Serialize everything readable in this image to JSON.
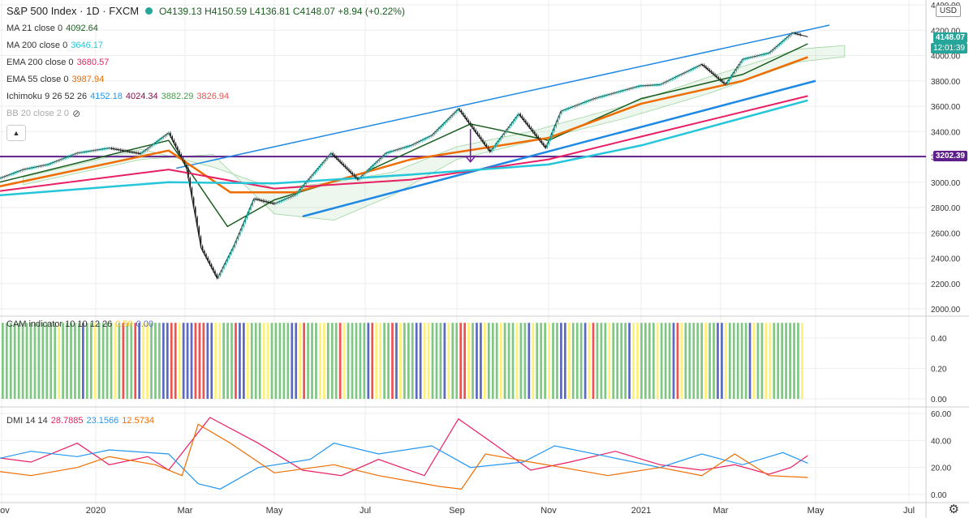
{
  "header": {
    "symbol": "S&P 500 Index · 1D · FXCM",
    "ohlc": "O4139.13  H4150.59  L4136.81  C4148.07  +8.94 (+0.22%)"
  },
  "currency": "USD",
  "price_labels": {
    "last": "4148.07",
    "countdown": "12:01:39",
    "level": "3202.39"
  },
  "indicators": {
    "ma21": {
      "label": "MA 21 close 0",
      "value": "4092.64",
      "color": "#1b5e20"
    },
    "ma200": {
      "label": "MA 200 close 0",
      "value": "3646.17",
      "color": "#26c6da"
    },
    "ema200": {
      "label": "EMA 200 close 0",
      "value": "3680.57",
      "color": "#e91e63"
    },
    "ema55": {
      "label": "EMA 55 close 0",
      "value": "3987.94",
      "color": "#ef6c00"
    },
    "ichimoku": {
      "label": "Ichimoku 9 26 52 26",
      "values": [
        "4152.18",
        "4024.34",
        "3882.29",
        "3826.94"
      ],
      "colors": [
        "#2196f3",
        "#880e4f",
        "#43a047",
        "#ef5350"
      ]
    },
    "bb": {
      "label": "BB 20 close 2 0"
    }
  },
  "cam": {
    "label": "CAM indicator 10 10 12 26",
    "values": [
      "0.50",
      "0.00"
    ]
  },
  "dmi": {
    "label": "DMI 14 14",
    "values": [
      "28.7885",
      "23.1566",
      "12.5734"
    ],
    "colors": [
      "#e91e63",
      "#2196f3",
      "#ef6c00"
    ]
  },
  "colors": {
    "up": "#26a69a",
    "down": "#1a1a1a",
    "level": "#5e1f8a",
    "trend": "#1e88e5",
    "cam_green": "#81c784",
    "cam_yellow": "#fff176",
    "cam_blue": "#5c6bc0",
    "cam_red": "#ef5350"
  },
  "chart_data": [
    {
      "type": "line",
      "title": "S&P 500 Index · 1D · FXCM",
      "x_ticks": [
        "Nov",
        "2020",
        "Mar",
        "May",
        "Jul",
        "Sep",
        "Nov",
        "2021",
        "Mar",
        "May",
        "Jul"
      ],
      "y_ticks": [
        2000,
        2200,
        2400,
        2600,
        2800,
        3000,
        3200,
        3400,
        3600,
        3800,
        4000,
        4200,
        4400
      ],
      "ylim": [
        1975,
        4410
      ],
      "series": [
        {
          "name": "S&P 500 Index",
          "x": [
            "2019-10-24",
            "2019-11-15",
            "2019-12-01",
            "2019-12-20",
            "2020-01-10",
            "2020-01-31",
            "2020-02-19",
            "2020-03-02",
            "2020-03-12",
            "2020-03-23",
            "2020-04-03",
            "2020-04-17",
            "2020-05-01",
            "2020-05-15",
            "2020-06-08",
            "2020-06-26",
            "2020-07-15",
            "2020-08-01",
            "2020-08-15",
            "2020-09-02",
            "2020-09-23",
            "2020-10-12",
            "2020-10-30",
            "2020-11-09",
            "2020-12-01",
            "2020-12-31",
            "2021-01-15",
            "2021-02-15",
            "2021-03-04",
            "2021-03-15",
            "2021-04-01",
            "2021-04-16",
            "2021-04-26"
          ],
          "values": [
            3000,
            3100,
            3140,
            3230,
            3270,
            3225,
            3390,
            3110,
            2480,
            2240,
            2490,
            2870,
            2830,
            2900,
            3230,
            3020,
            3230,
            3290,
            3370,
            3580,
            3240,
            3540,
            3270,
            3560,
            3660,
            3760,
            3770,
            3930,
            3770,
            3970,
            4020,
            4180,
            4148
          ]
        },
        {
          "name": "MA 21 close 0",
          "x": [
            "2019-10-24",
            "2020-02-19",
            "2020-03-30",
            "2020-05-01",
            "2020-07-01",
            "2020-09-10",
            "2020-11-01",
            "2021-01-01",
            "2021-03-15",
            "2021-04-26"
          ],
          "values": [
            2980,
            3330,
            2650,
            2860,
            3080,
            3460,
            3330,
            3660,
            3850,
            4092.64
          ]
        },
        {
          "name": "EMA 55 close 0",
          "x": [
            "2019-10-24",
            "2020-02-19",
            "2020-04-01",
            "2020-05-15",
            "2020-08-01",
            "2020-11-01",
            "2021-01-01",
            "2021-03-15",
            "2021-04-26"
          ],
          "values": [
            2950,
            3250,
            2920,
            2920,
            3180,
            3350,
            3620,
            3800,
            3987.94
          ]
        },
        {
          "name": "EMA 200 close 0",
          "x": [
            "2019-10-24",
            "2020-02-19",
            "2020-05-01",
            "2020-08-01",
            "2020-11-01",
            "2021-01-01",
            "2021-04-26"
          ],
          "values": [
            2920,
            3100,
            2950,
            3020,
            3180,
            3360,
            3680.57
          ]
        },
        {
          "name": "MA 200 close 0",
          "x": [
            "2019-10-24",
            "2020-02-19",
            "2020-05-01",
            "2020-08-01",
            "2020-11-01",
            "2021-01-01",
            "2021-04-26"
          ],
          "values": [
            2890,
            3000,
            2990,
            3060,
            3140,
            3290,
            3646.17
          ]
        }
      ],
      "horizontal_line": 3202.39
    },
    {
      "type": "bar",
      "title": "CAM indicator 10 10 12 26",
      "y_ticks": [
        0.0,
        0.2,
        0.4
      ],
      "ylim": [
        -0.02,
        0.53
      ],
      "bar_value": 0.5,
      "color_sequence": [
        "green",
        "green",
        "green",
        "green",
        "green",
        "green",
        "green",
        "green",
        "green",
        "green",
        "green",
        "green",
        "green",
        "green",
        "yellow",
        "green",
        "green",
        "green",
        "green",
        "green",
        "blue",
        "green",
        "green",
        "yellow",
        "green",
        "green",
        "green",
        "green",
        "yellow",
        "green",
        "red",
        "green",
        "green",
        "red",
        "blue",
        "yellow",
        "yellow",
        "green",
        "green",
        "green",
        "blue",
        "blue",
        "red",
        "red",
        "yellow",
        "blue",
        "blue",
        "blue",
        "red",
        "red",
        "red",
        "blue",
        "blue",
        "yellow",
        "yellow",
        "green",
        "green",
        "green",
        "red",
        "blue",
        "blue",
        "yellow",
        "green",
        "green",
        "green",
        "yellow",
        "yellow",
        "green",
        "green",
        "green",
        "green",
        "green",
        "blue",
        "blue",
        "yellow",
        "red",
        "green",
        "green",
        "green",
        "yellow",
        "yellow",
        "green",
        "green",
        "green",
        "red",
        "yellow",
        "green",
        "green",
        "green",
        "green",
        "green",
        "blue",
        "red",
        "yellow",
        "yellow",
        "green",
        "green",
        "red",
        "blue",
        "yellow",
        "green",
        "green",
        "green",
        "blue",
        "blue",
        "yellow",
        "yellow",
        "green",
        "green",
        "green",
        "blue",
        "yellow",
        "green",
        "green",
        "red",
        "red",
        "yellow",
        "green",
        "blue",
        "blue",
        "yellow",
        "green",
        "green",
        "green",
        "yellow",
        "green",
        "green",
        "green",
        "yellow",
        "green",
        "green",
        "blue",
        "yellow",
        "green",
        "green",
        "green",
        "yellow",
        "green",
        "green",
        "blue",
        "blue",
        "yellow",
        "green",
        "green",
        "green",
        "blue",
        "yellow",
        "red",
        "green",
        "green",
        "green",
        "yellow",
        "green",
        "green",
        "green",
        "green",
        "blue",
        "yellow",
        "yellow",
        "green",
        "green",
        "green",
        "green",
        "yellow",
        "green",
        "green",
        "green",
        "blue",
        "red",
        "yellow",
        "green",
        "green",
        "green",
        "green",
        "green",
        "yellow",
        "green",
        "green",
        "blue",
        "blue",
        "yellow",
        "green",
        "green",
        "green",
        "green",
        "green",
        "blue",
        "yellow",
        "green",
        "green",
        "yellow",
        "yellow",
        "green",
        "green",
        "green",
        "green",
        "green",
        "green",
        "green",
        "yellow"
      ]
    },
    {
      "type": "line",
      "title": "DMI 14 14",
      "y_ticks": [
        0.0,
        20.0,
        40.0,
        60.0
      ],
      "ylim": [
        -1,
        62
      ],
      "series": [
        {
          "name": "28.7885",
          "x": [
            "2019-10-24",
            "2019-11-20",
            "2019-12-20",
            "2020-01-10",
            "2020-02-05",
            "2020-02-19",
            "2020-03-18",
            "2020-04-20",
            "2020-05-20",
            "2020-06-15",
            "2020-07-10",
            "2020-08-10",
            "2020-09-02",
            "2020-09-25",
            "2020-10-20",
            "2020-11-15",
            "2020-12-15",
            "2021-01-15",
            "2021-02-15",
            "2021-03-10",
            "2021-04-01",
            "2021-04-15",
            "2021-04-26"
          ],
          "values": [
            28,
            24,
            38,
            22,
            28,
            18,
            57,
            38,
            18,
            14,
            26,
            14,
            56,
            38,
            18,
            24,
            32,
            22,
            18,
            22,
            15,
            20,
            28.79
          ]
        },
        {
          "name": "23.1566",
          "x": [
            "2019-10-24",
            "2019-11-20",
            "2019-12-20",
            "2020-01-10",
            "2020-02-19",
            "2020-03-10",
            "2020-03-25",
            "2020-04-20",
            "2020-05-25",
            "2020-06-10",
            "2020-07-10",
            "2020-08-15",
            "2020-09-10",
            "2020-10-15",
            "2020-11-05",
            "2020-12-10",
            "2021-01-15",
            "2021-02-15",
            "2021-03-15",
            "2021-04-10",
            "2021-04-26"
          ],
          "values": [
            25,
            32,
            28,
            33,
            30,
            8,
            4,
            20,
            26,
            38,
            30,
            36,
            20,
            24,
            36,
            28,
            20,
            30,
            22,
            31,
            23.16
          ]
        },
        {
          "name": "12.5734",
          "x": [
            "2019-10-24",
            "2019-11-20",
            "2019-12-20",
            "2020-01-10",
            "2020-02-10",
            "2020-02-28",
            "2020-03-10",
            "2020-04-01",
            "2020-05-01",
            "2020-06-10",
            "2020-07-10",
            "2020-08-20",
            "2020-09-04",
            "2020-09-20",
            "2020-10-20",
            "2020-11-10",
            "2020-12-10",
            "2021-01-15",
            "2021-02-15",
            "2021-03-10",
            "2021-04-01",
            "2021-04-26"
          ],
          "values": [
            18,
            14,
            20,
            28,
            22,
            14,
            52,
            38,
            16,
            22,
            14,
            6,
            4,
            30,
            24,
            20,
            14,
            20,
            14,
            30,
            14,
            12.57
          ]
        }
      ]
    }
  ]
}
